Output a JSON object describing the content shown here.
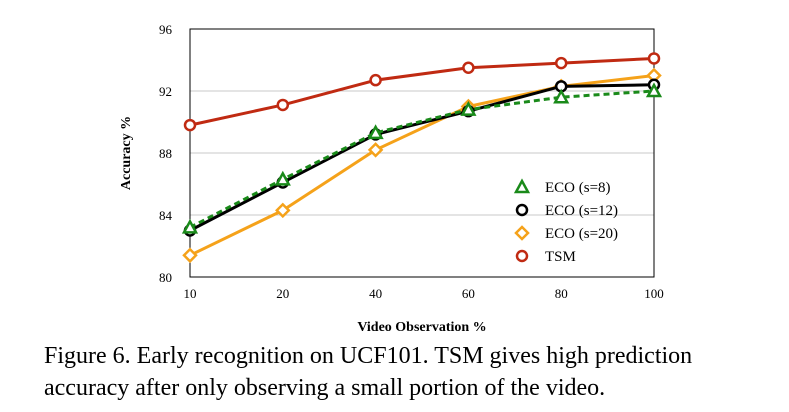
{
  "chart_data": {
    "type": "line",
    "title": "",
    "xlabel": "Video Observation %",
    "ylabel": "Accuracy %",
    "categories": [
      "10",
      "20",
      "40",
      "60",
      "80",
      "100"
    ],
    "ylim": [
      80,
      96
    ],
    "yticks": [
      "80",
      "84",
      "88",
      "92",
      "96"
    ],
    "grid": "horizontal",
    "legend_position": "bottom-right",
    "series": [
      {
        "name": "ECO (s=8)",
        "color": "#1a8a1a",
        "marker": "triangle",
        "dash": true,
        "values": [
          83.2,
          86.3,
          89.3,
          90.8,
          91.6,
          92.0
        ]
      },
      {
        "name": "ECO (s=12)",
        "color": "#000000",
        "marker": "circle",
        "dash": false,
        "values": [
          83.0,
          86.1,
          89.2,
          90.7,
          92.3,
          92.4
        ]
      },
      {
        "name": "ECO (s=20)",
        "color": "#f5a21a",
        "marker": "diamond",
        "dash": false,
        "values": [
          81.4,
          84.3,
          88.2,
          91.0,
          92.3,
          93.0
        ]
      },
      {
        "name": "TSM",
        "color": "#c02a12",
        "marker": "circle",
        "dash": false,
        "values": [
          89.8,
          91.1,
          92.7,
          93.5,
          93.8,
          94.1
        ]
      }
    ]
  },
  "caption": {
    "line1": "Figure 6. Early recognition on UCF101. TSM gives high prediction",
    "line2": "accuracy after only observing a small portion of the video."
  }
}
